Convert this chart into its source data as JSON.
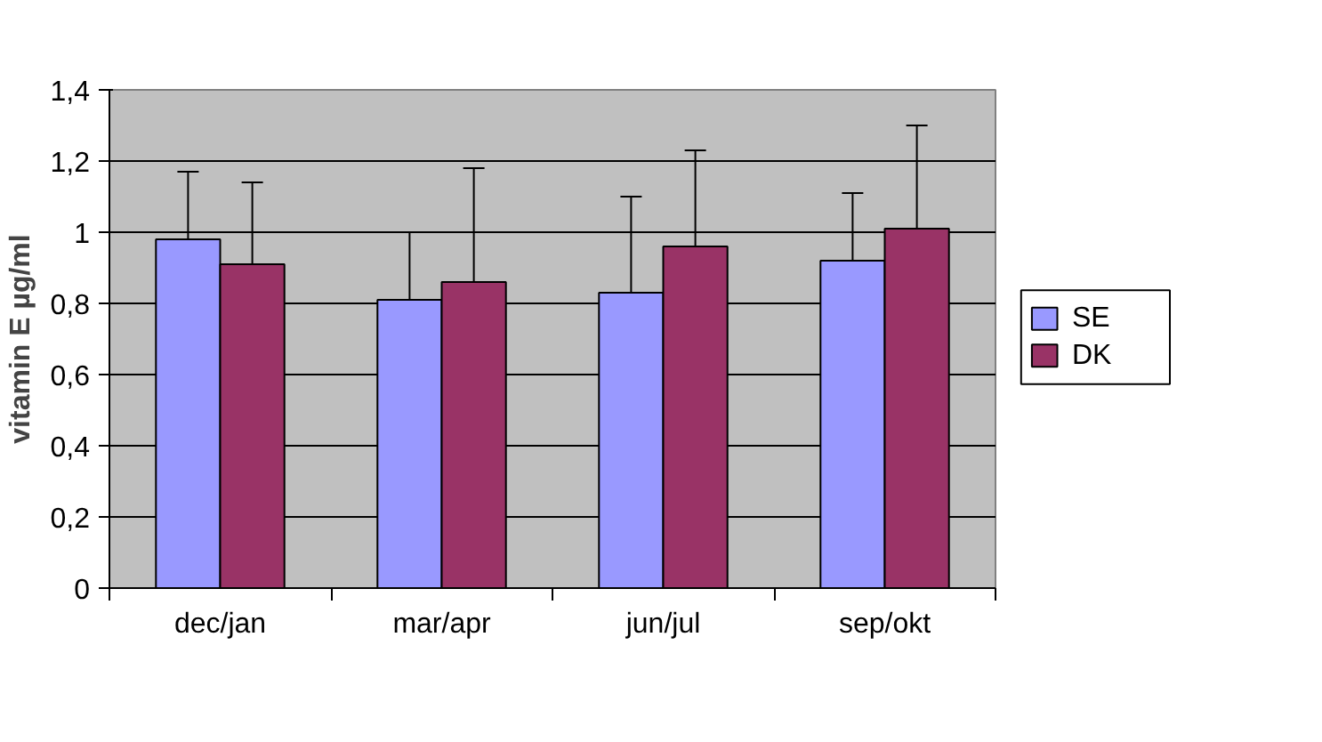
{
  "chart_data": {
    "type": "bar",
    "ylabel": "vitamin E µg/ml",
    "categories": [
      "dec/jan",
      "mar/apr",
      "jun/jul",
      "sep/okt"
    ],
    "series": [
      {
        "name": "SE",
        "color": "#9999ff",
        "values": [
          0.98,
          0.81,
          0.83,
          0.92
        ],
        "errors": [
          [
            0.98,
            1.17
          ],
          [
            0.81,
            1.0
          ],
          [
            0.83,
            1.1
          ],
          [
            0.92,
            1.11
          ]
        ]
      },
      {
        "name": "DK",
        "color": "#993366",
        "values": [
          0.91,
          0.86,
          0.96,
          1.01
        ],
        "errors": [
          [
            0.91,
            1.14
          ],
          [
            0.86,
            1.18
          ],
          [
            0.96,
            1.23
          ],
          [
            1.01,
            1.3
          ]
        ]
      }
    ],
    "ylim": [
      0,
      1.4
    ],
    "yticks": [
      0,
      {
        "value": 0.2,
        "label": "0,2"
      },
      {
        "value": 0.4,
        "label": "0,4"
      },
      {
        "value": 0.6,
        "label": "0,6"
      },
      {
        "value": 0.8,
        "label": "0,8"
      },
      1,
      {
        "value": 1.2,
        "label": "1,2"
      },
      {
        "value": 1.4,
        "label": "1,4"
      }
    ],
    "grid": "y",
    "legend": "right"
  }
}
